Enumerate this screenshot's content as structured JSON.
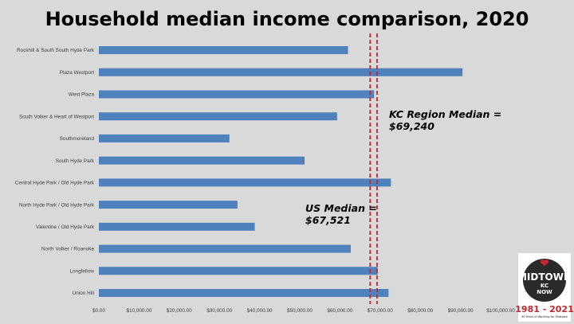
{
  "chart_data": {
    "type": "bar",
    "orientation": "horizontal",
    "title": "Household median income comparison, 2020",
    "categories": [
      "Rockhill & South South Hyde Park",
      "Plaza Westport",
      "West Plaza",
      "South Volker & Heart of Westport",
      "Southmoreland",
      "South Hyde Park",
      "Central Hyde Park / Old Hyde Park",
      "North Hyde Park / Old Hyde Park",
      "Valentine / Old Hyde Park",
      "North Volker / Roanoke",
      "Longfellow",
      "Union Hill"
    ],
    "values": [
      62000,
      90500,
      68500,
      59300,
      32500,
      51200,
      72700,
      34500,
      38800,
      62700,
      69400,
      72100
    ],
    "xlim": [
      0,
      100000
    ],
    "xticks": [
      0,
      10000,
      20000,
      30000,
      40000,
      50000,
      60000,
      70000,
      80000,
      90000,
      100000
    ],
    "xtick_labels": [
      "$0.00",
      "$10,000.00",
      "$20,000.00",
      "$30,000.00",
      "$40,000.00",
      "$50,000.00",
      "$60,000.00",
      "$70,000.00",
      "$80,000.00",
      "$90,000.00",
      "$100,000.00"
    ],
    "bar_color": "#4f81bd",
    "reference_lines": [
      {
        "name": "US Median",
        "value": 67521,
        "label_line1": "US Median =",
        "label_line2": "$67,521",
        "color": "#c0282d"
      },
      {
        "name": "KC Region Median",
        "value": 69240,
        "label_line1": "KC Region Median =",
        "label_line2": "$69,240",
        "color": "#c0282d"
      }
    ]
  },
  "logo": {
    "name": "MIDTOWN",
    "subtitle_line1": "KC",
    "subtitle_line2": "NOW",
    "years": "1981 - 2021",
    "tagline": "40 Years of Working for Midtown",
    "colors": {
      "dark": "#2a2a2a",
      "red": "#c0282d",
      "white": "#ffffff"
    }
  }
}
